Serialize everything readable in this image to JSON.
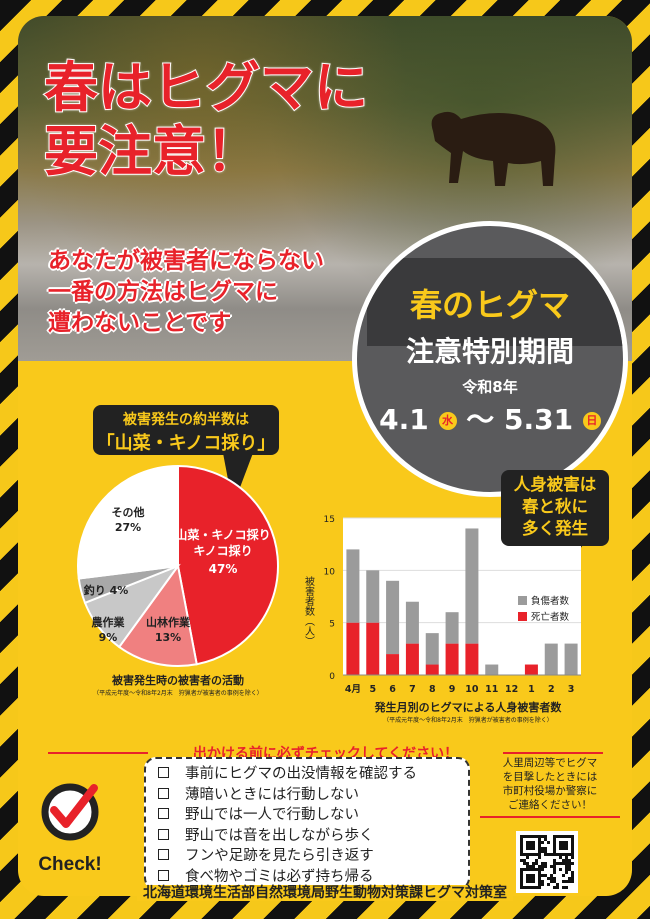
{
  "title": {
    "line1": "春はヒグマに",
    "line2": "要注意！"
  },
  "subtitle": [
    "あなたが被害者にならない",
    "一番の方法はヒグマに",
    "遭わないことです"
  ],
  "period": {
    "line1": "春のヒグマ",
    "line2": "注意特別期間",
    "year": "令和8年",
    "start": "4.1",
    "start_day": "水",
    "tilde": "〜",
    "end": "5.31",
    "end_day": "日"
  },
  "pie_callout": {
    "line1": "被害発生の約半数は",
    "line2": "「山菜・キノコ採り」"
  },
  "bar_callout": [
    "人身被害は",
    "春と秋に",
    "多く発生"
  ],
  "colors": {
    "accent": "#e8222a",
    "yellow": "#f9c91b",
    "dark": "#222222",
    "injury": "#9b9b9b",
    "pink": "#f08080"
  },
  "chart_data": [
    {
      "type": "pie",
      "title": "被害発生時の被害者の活動",
      "note": "（平成元年度〜令和8年2月末　狩猟者が被害者の事例を除く）",
      "slices": [
        {
          "label": "山菜・キノコ採り",
          "value": 47,
          "color": "#e8222a",
          "text": "47%"
        },
        {
          "label": "山林作業",
          "value": 13,
          "color": "#f08080",
          "text": "13%"
        },
        {
          "label": "農作業",
          "value": 9,
          "color": "#c8c8c8",
          "text": "9%"
        },
        {
          "label": "釣り",
          "value": 4,
          "color": "#a8a8a8",
          "text": "4%"
        },
        {
          "label": "その他",
          "value": 27,
          "color": "#ffffff",
          "text": "27%"
        }
      ]
    },
    {
      "type": "bar",
      "stacked": true,
      "title": "発生月別のヒグマによる人身被害者数",
      "note": "（平成元年度〜令和8年2月末　狩猟者が被害者の事例を除く）",
      "ylabel": "被害者数（人）",
      "ylim": [
        0,
        15
      ],
      "yticks": [
        0,
        5,
        10,
        15
      ],
      "grid": true,
      "legend": "right",
      "categories": [
        "4月",
        "5",
        "6",
        "7",
        "8",
        "9",
        "10",
        "11",
        "12",
        "1",
        "2",
        "3"
      ],
      "series": [
        {
          "name": "死亡者数",
          "color": "#e8222a",
          "values": [
            5,
            5,
            2,
            3,
            1,
            3,
            3,
            0,
            0,
            1,
            0,
            0
          ]
        },
        {
          "name": "負傷者数",
          "color": "#9b9b9b",
          "values": [
            7,
            5,
            7,
            4,
            3,
            3,
            11,
            1,
            0,
            0,
            3,
            3
          ]
        }
      ]
    }
  ],
  "checklist": {
    "heading": "出かける前に必ずチェックしてください！",
    "items": [
      "事前にヒグマの出没情報を確認する",
      "薄暗いときには行動しない",
      "野山では一人で行動しない",
      "野山では音を出しながら歩く",
      "フンや足跡を見たら引き返す",
      "食べ物やゴミは必ず持ち帰る"
    ],
    "badge": "Check!"
  },
  "notice": [
    "人里周辺等でヒグマ",
    "を目撃したときには",
    "市町村役場か警察に",
    "ご連絡ください！"
  ],
  "footer": "北海道環境生活部自然環境局野生動物対策課ヒグマ対策室"
}
